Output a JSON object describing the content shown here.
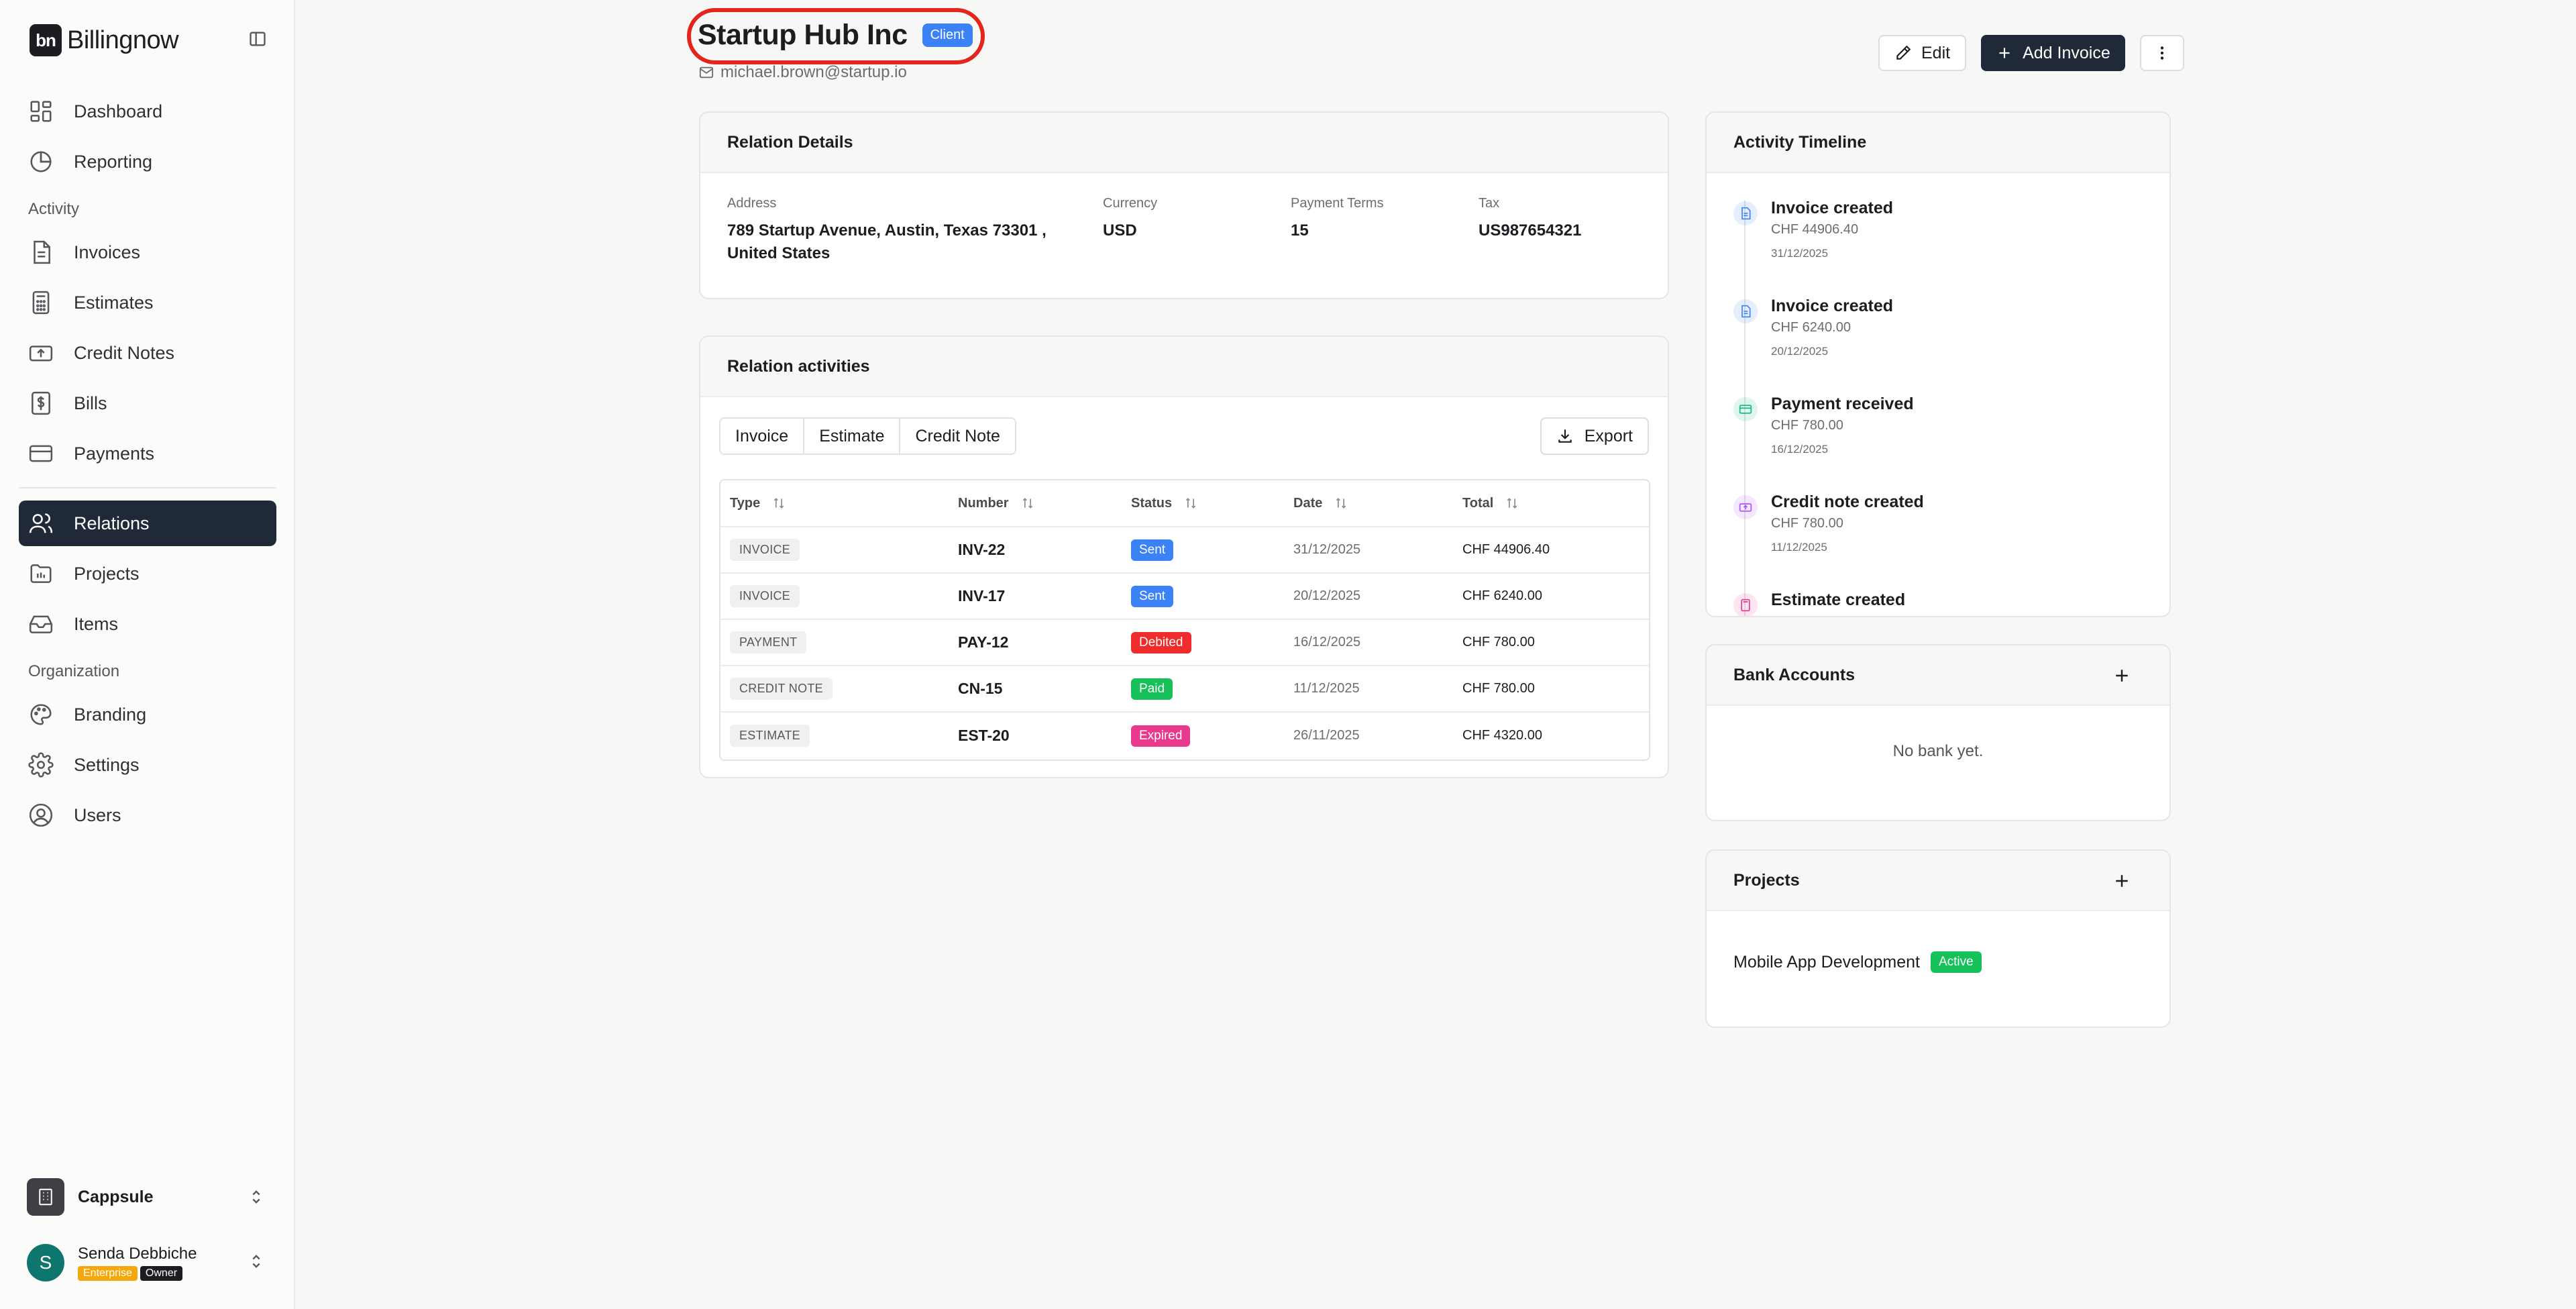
{
  "app": {
    "logo_text": "bn",
    "name": "Billingnow"
  },
  "sidebar": {
    "items": [
      {
        "label": "Dashboard",
        "icon": "dashboard-icon"
      },
      {
        "label": "Reporting",
        "icon": "pie-chart-icon"
      }
    ],
    "activity_section": "Activity",
    "activity_items": [
      {
        "label": "Invoices",
        "icon": "invoice-icon"
      },
      {
        "label": "Estimates",
        "icon": "calculator-icon"
      },
      {
        "label": "Credit Notes",
        "icon": "credit-note-icon"
      },
      {
        "label": "Bills",
        "icon": "dollar-receipt-icon"
      },
      {
        "label": "Payments",
        "icon": "credit-card-icon"
      }
    ],
    "main_items": [
      {
        "label": "Relations",
        "icon": "users-icon",
        "active": true
      },
      {
        "label": "Projects",
        "icon": "folder-icon"
      },
      {
        "label": "Items",
        "icon": "inbox-icon"
      }
    ],
    "organization_section": "Organization",
    "org_items": [
      {
        "label": "Branding",
        "icon": "palette-icon"
      },
      {
        "label": "Settings",
        "icon": "gear-icon"
      },
      {
        "label": "Users",
        "icon": "user-circle-icon"
      }
    ],
    "org_switcher": {
      "name": "Cappsule"
    },
    "user": {
      "initial": "S",
      "name": "Senda Debbiche",
      "plan": "Enterprise",
      "role": "Owner"
    }
  },
  "header": {
    "title": "Startup Hub Inc",
    "badge": "Client",
    "email": "michael.brown@startup.io",
    "edit_label": "Edit",
    "add_invoice_label": "Add Invoice"
  },
  "relation_details": {
    "title": "Relation Details",
    "address_label": "Address",
    "address_line1": "789 Startup Avenue, Austin, Texas 73301 ,",
    "address_line2": "United States",
    "currency_label": "Currency",
    "currency": "USD",
    "payment_terms_label": "Payment Terms",
    "payment_terms": "15",
    "tax_label": "Tax",
    "tax": "US987654321"
  },
  "relation_activities": {
    "title": "Relation activities",
    "tabs": [
      "Invoice",
      "Estimate",
      "Credit Note"
    ],
    "export_label": "Export",
    "columns": [
      "Type",
      "Number",
      "Status",
      "Date",
      "Total"
    ],
    "rows": [
      {
        "type": "INVOICE",
        "number": "INV-22",
        "status": "Sent",
        "status_color": "#3b82f6",
        "date": "31/12/2025",
        "total": "CHF 44906.40"
      },
      {
        "type": "INVOICE",
        "number": "INV-17",
        "status": "Sent",
        "status_color": "#3b82f6",
        "date": "20/12/2025",
        "total": "CHF 6240.00"
      },
      {
        "type": "PAYMENT",
        "number": "PAY-12",
        "status": "Debited",
        "status_color": "#ef2b2b",
        "date": "16/12/2025",
        "total": "CHF 780.00"
      },
      {
        "type": "CREDIT NOTE",
        "number": "CN-15",
        "status": "Paid",
        "status_color": "#16c15a",
        "date": "11/12/2025",
        "total": "CHF 780.00"
      },
      {
        "type": "ESTIMATE",
        "number": "EST-20",
        "status": "Expired",
        "status_color": "#e8398f",
        "date": "26/11/2025",
        "total": "CHF 4320.00"
      }
    ]
  },
  "activity_timeline": {
    "title": "Activity Timeline",
    "items": [
      {
        "title": "Invoice created",
        "amount": "CHF 44906.40",
        "date": "31/12/2025",
        "icon": "document-icon",
        "color": "#3b82f6"
      },
      {
        "title": "Invoice created",
        "amount": "CHF 6240.00",
        "date": "20/12/2025",
        "icon": "document-icon",
        "color": "#3b82f6"
      },
      {
        "title": "Payment received",
        "amount": "CHF 780.00",
        "date": "16/12/2025",
        "icon": "card-icon",
        "color": "#10b981"
      },
      {
        "title": "Credit note created",
        "amount": "CHF 780.00",
        "date": "11/12/2025",
        "icon": "receipt-icon",
        "color": "#a855f7"
      },
      {
        "title": "Estimate created",
        "amount": "",
        "date": "",
        "icon": "calculator-icon",
        "color": "#e8398f"
      }
    ]
  },
  "bank_accounts": {
    "title": "Bank Accounts",
    "empty": "No bank yet."
  },
  "projects": {
    "title": "Projects",
    "items": [
      {
        "name": "Mobile App Development",
        "status": "Active"
      }
    ]
  }
}
